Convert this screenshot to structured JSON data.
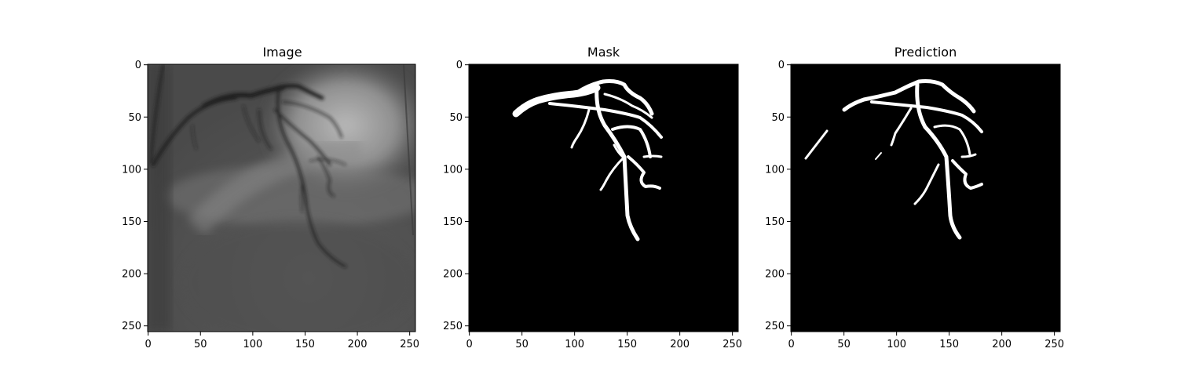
{
  "figure": {
    "panels": [
      {
        "title": "Image"
      },
      {
        "title": "Mask"
      },
      {
        "title": "Prediction"
      }
    ],
    "axis": {
      "x_ticks": [
        0,
        50,
        100,
        150,
        200,
        250
      ],
      "y_ticks": [
        0,
        50,
        100,
        150,
        200,
        250
      ],
      "range": [
        0,
        255
      ]
    },
    "colors": {
      "mask_background": "#000000",
      "mask_foreground": "#ffffff",
      "image_base": "#5a5a5a",
      "vessel": "#1e1e1e"
    }
  }
}
